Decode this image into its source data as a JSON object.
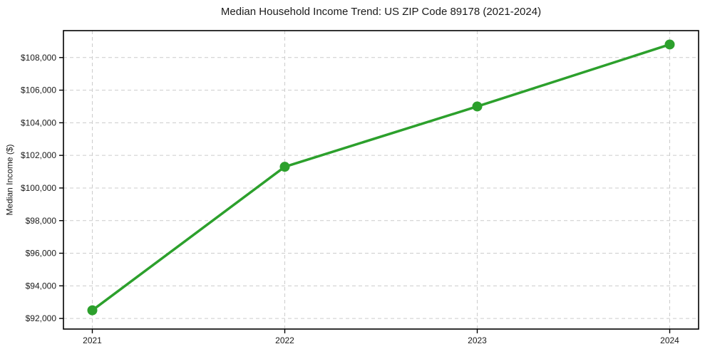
{
  "chart_data": {
    "type": "line",
    "title": "Median Household Income Trend: US ZIP Code 89178 (2021-2024)",
    "xlabel": "",
    "ylabel": "Median Income ($)",
    "x": [
      2021,
      2022,
      2023,
      2024
    ],
    "x_tick_labels": [
      "2021",
      "2022",
      "2023",
      "2024"
    ],
    "series": [
      {
        "name": "Median Household Income",
        "values": [
          92500,
          101300,
          105000,
          108800
        ],
        "color": "#2ca02c",
        "marker": "circle",
        "line_width": 3.5,
        "marker_radius": 7
      }
    ],
    "y_ticks": [
      92000,
      94000,
      96000,
      98000,
      100000,
      102000,
      104000,
      106000,
      108000
    ],
    "y_tick_labels": [
      "$92,000",
      "$94,000",
      "$96,000",
      "$98,000",
      "$100,000",
      "$102,000",
      "$104,000",
      "$106,000",
      "$108,000"
    ],
    "xlim": [
      2020.85,
      2024.15
    ],
    "ylim": [
      91350,
      109650
    ],
    "grid": true,
    "grid_style": "dashed",
    "legend": "none",
    "colors": {
      "line": "#2ca02c",
      "grid": "#cccccc",
      "axis": "#000000",
      "text": "#1a1a1a",
      "background": "#ffffff"
    }
  }
}
